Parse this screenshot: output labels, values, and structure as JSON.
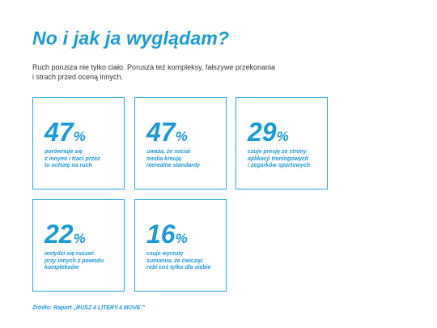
{
  "header": {
    "title": "No i jak ja wyglądam?",
    "intro": [
      "Ruch porusza nie tylko ciało. Porusza też kompleksy, fałszywe przekonania",
      "i strach przed oceną innych."
    ]
  },
  "stats": [
    {
      "number": "47",
      "unit": "%",
      "lines": [
        "porównuje się",
        "z innymi i traci przez",
        "to ochotę na ruch"
      ]
    },
    {
      "number": "47",
      "unit": "%",
      "lines": [
        "uważa, że social",
        "media kreują",
        "nierealne standardy"
      ]
    },
    {
      "number": "29",
      "unit": "%",
      "lines": [
        "czuje presję ze strony",
        "aplikacji treningowych",
        "i zegarków sportowych"
      ]
    },
    {
      "number": "22",
      "unit": "%",
      "lines": [
        "wstydzi się ruszać",
        "przy innych z powodu",
        "kompleksów"
      ]
    },
    {
      "number": "16",
      "unit": "%",
      "lines": [
        "czuje wyrzuty",
        "sumienia, że ćwicząc",
        "robi coś tylko dla siebie"
      ]
    }
  ],
  "source": "Źródło: Raport „RUSZ 4 LITERY.4 MOVE.”"
}
